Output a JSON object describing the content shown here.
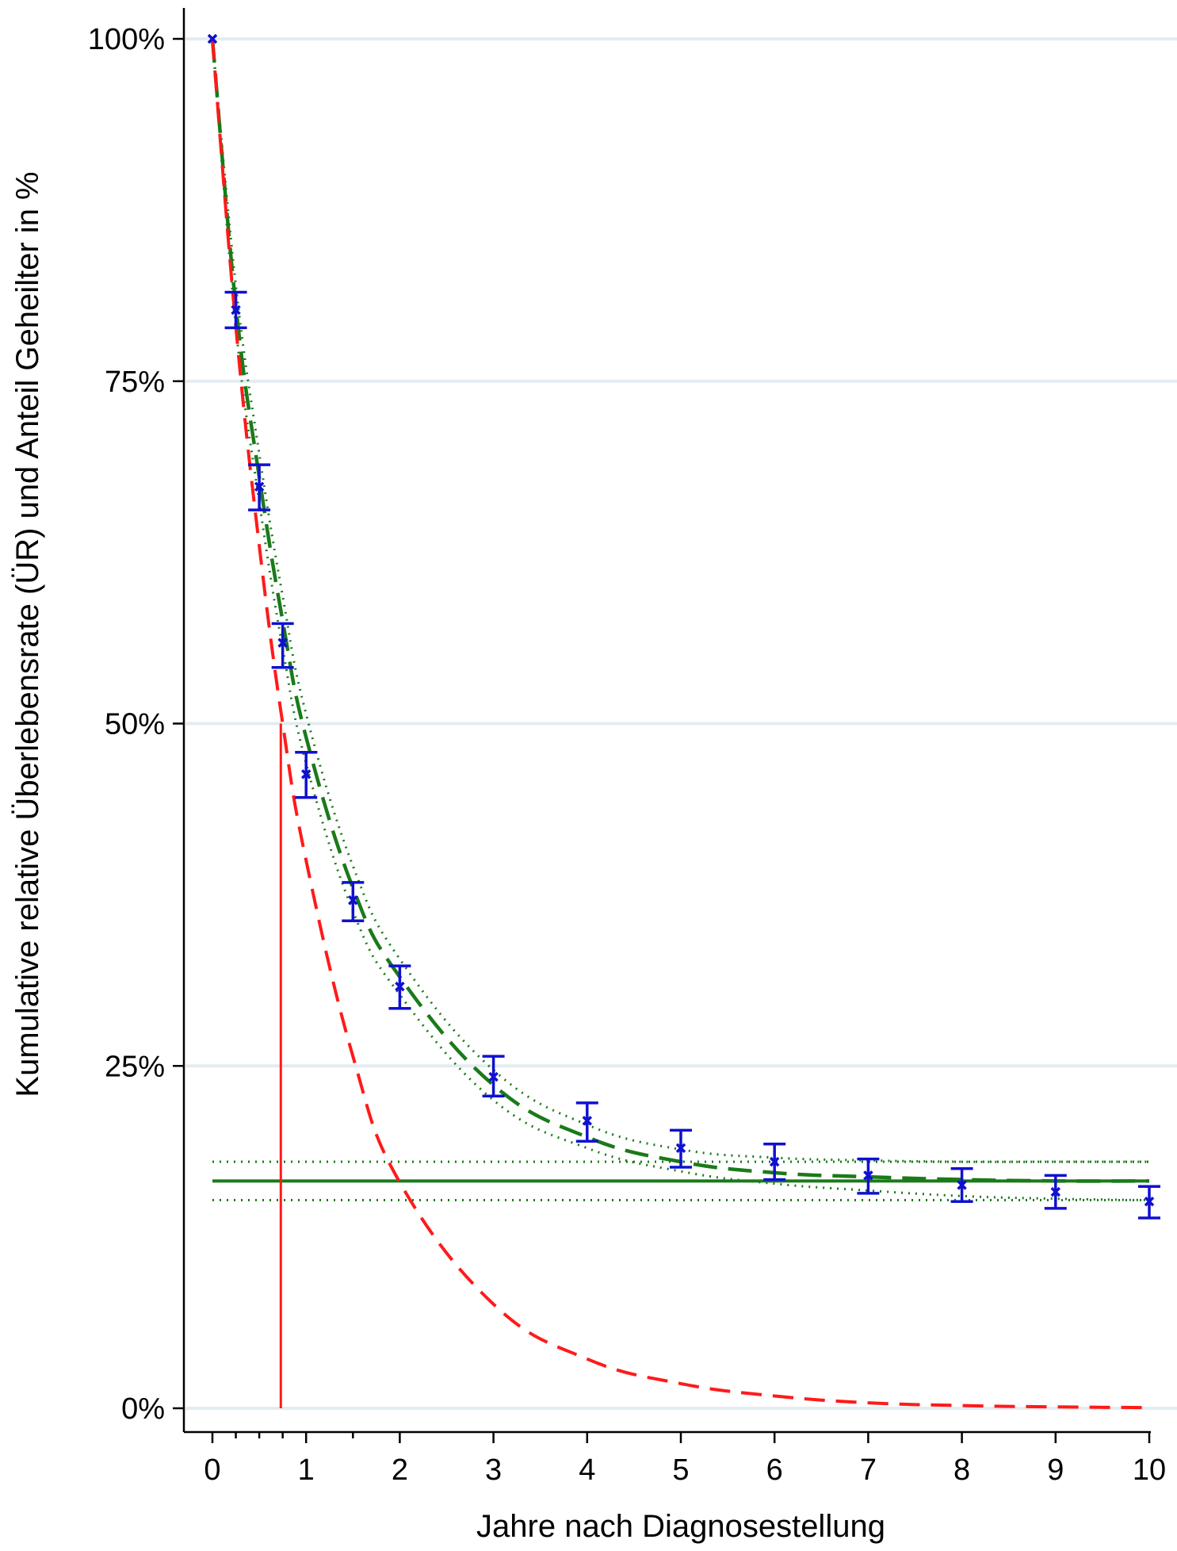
{
  "chart_data": {
    "type": "line",
    "title": "",
    "xlabel": "Jahre nach Diagnosestellung",
    "ylabel": "Kumulative relative Überlebensrate (ÜR) und Anteil Geheilter in %",
    "xlim": [
      0,
      10
    ],
    "ylim": [
      0,
      100
    ],
    "x_ticks": [
      0,
      1,
      2,
      3,
      4,
      5,
      6,
      7,
      8,
      9,
      10
    ],
    "x_tick_labels": [
      "0",
      "1",
      "2",
      "3",
      "4",
      "5",
      "6",
      "7",
      "8",
      "9",
      "10"
    ],
    "x_minor_ticks": [
      0.25,
      0.5,
      0.75,
      1.5
    ],
    "y_ticks": [
      0,
      25,
      50,
      75,
      100
    ],
    "y_tick_labels": [
      "0%",
      "25%",
      "50%",
      "75%",
      "100%"
    ],
    "grid": "horizontal",
    "legend": "none",
    "colors": {
      "observed": "#1010d0",
      "fitted": "#1a7a1a",
      "uncured": "#ff1a1a",
      "cure_fraction": "#1a7a1a",
      "grid": "#e4ecf0"
    },
    "series": [
      {
        "role": "observed",
        "style": "markers-with-error-bars",
        "x": [
          0,
          0.25,
          0.5,
          0.75,
          1,
          1.5,
          2,
          3,
          4,
          5,
          6,
          7,
          8,
          9,
          10
        ],
        "y": [
          100,
          80.2,
          67.3,
          55.9,
          46.3,
          37.1,
          30.8,
          24.2,
          21.0,
          19.0,
          18.0,
          17.0,
          16.3,
          15.8,
          15.1
        ],
        "lower": [
          100,
          78.9,
          65.6,
          54.1,
          44.6,
          35.6,
          29.2,
          22.8,
          19.5,
          17.6,
          16.7,
          15.7,
          15.1,
          14.6,
          13.9
        ],
        "upper": [
          100,
          81.5,
          68.9,
          57.3,
          47.9,
          38.4,
          32.3,
          25.7,
          22.3,
          20.3,
          19.3,
          18.2,
          17.5,
          17.0,
          16.2
        ]
      },
      {
        "role": "fitted",
        "style": "long-dash",
        "x": [
          0,
          0.25,
          0.5,
          0.75,
          1,
          1.5,
          2,
          3,
          4,
          5,
          6,
          7,
          8,
          9,
          10
        ],
        "y": [
          100,
          80.5,
          68.0,
          57.5,
          49.0,
          38.0,
          31.5,
          23.6,
          19.8,
          18.0,
          17.2,
          16.9,
          16.7,
          16.6,
          16.6
        ]
      },
      {
        "role": "fitted-ci-lower",
        "style": "dotted",
        "x": [
          0,
          0.25,
          0.5,
          0.75,
          1,
          1.5,
          2,
          3,
          4,
          5,
          6,
          7,
          8,
          9,
          10
        ],
        "y": [
          100,
          79.0,
          66.2,
          55.5,
          47.1,
          36.3,
          30.2,
          22.5,
          19.0,
          17.3,
          16.4,
          15.9,
          15.5,
          15.3,
          15.2
        ]
      },
      {
        "role": "fitted-ci-upper",
        "style": "dotted",
        "x": [
          0,
          0.25,
          0.5,
          0.75,
          1,
          1.5,
          2,
          3,
          4,
          5,
          6,
          7,
          8,
          9,
          10
        ],
        "y": [
          100,
          82.0,
          69.7,
          59.3,
          50.7,
          39.6,
          32.8,
          24.7,
          20.7,
          18.9,
          18.3,
          18.1,
          18.0,
          18.0,
          18.0
        ]
      },
      {
        "role": "uncured",
        "style": "dashed",
        "x": [
          0,
          0.25,
          0.5,
          0.75,
          1,
          1.5,
          2,
          3,
          4,
          5,
          6,
          7,
          8,
          9,
          10
        ],
        "y": [
          100,
          79.0,
          63.0,
          50.0,
          40.0,
          25.7,
          16.5,
          7.6,
          3.6,
          1.8,
          0.9,
          0.4,
          0.2,
          0.1,
          0.05
        ]
      },
      {
        "role": "cure-fraction",
        "style": "solid",
        "x": [
          0,
          10
        ],
        "y": [
          16.6,
          16.6
        ]
      },
      {
        "role": "cure-fraction-ci",
        "style": "dotted",
        "x": [
          0,
          10
        ],
        "y": [
          15.2,
          18.0
        ]
      }
    ],
    "annotations": [
      {
        "role": "median-uncured",
        "style": "vertical-line",
        "x": 0.73,
        "y_from": 0,
        "y_to": 50
      }
    ]
  }
}
